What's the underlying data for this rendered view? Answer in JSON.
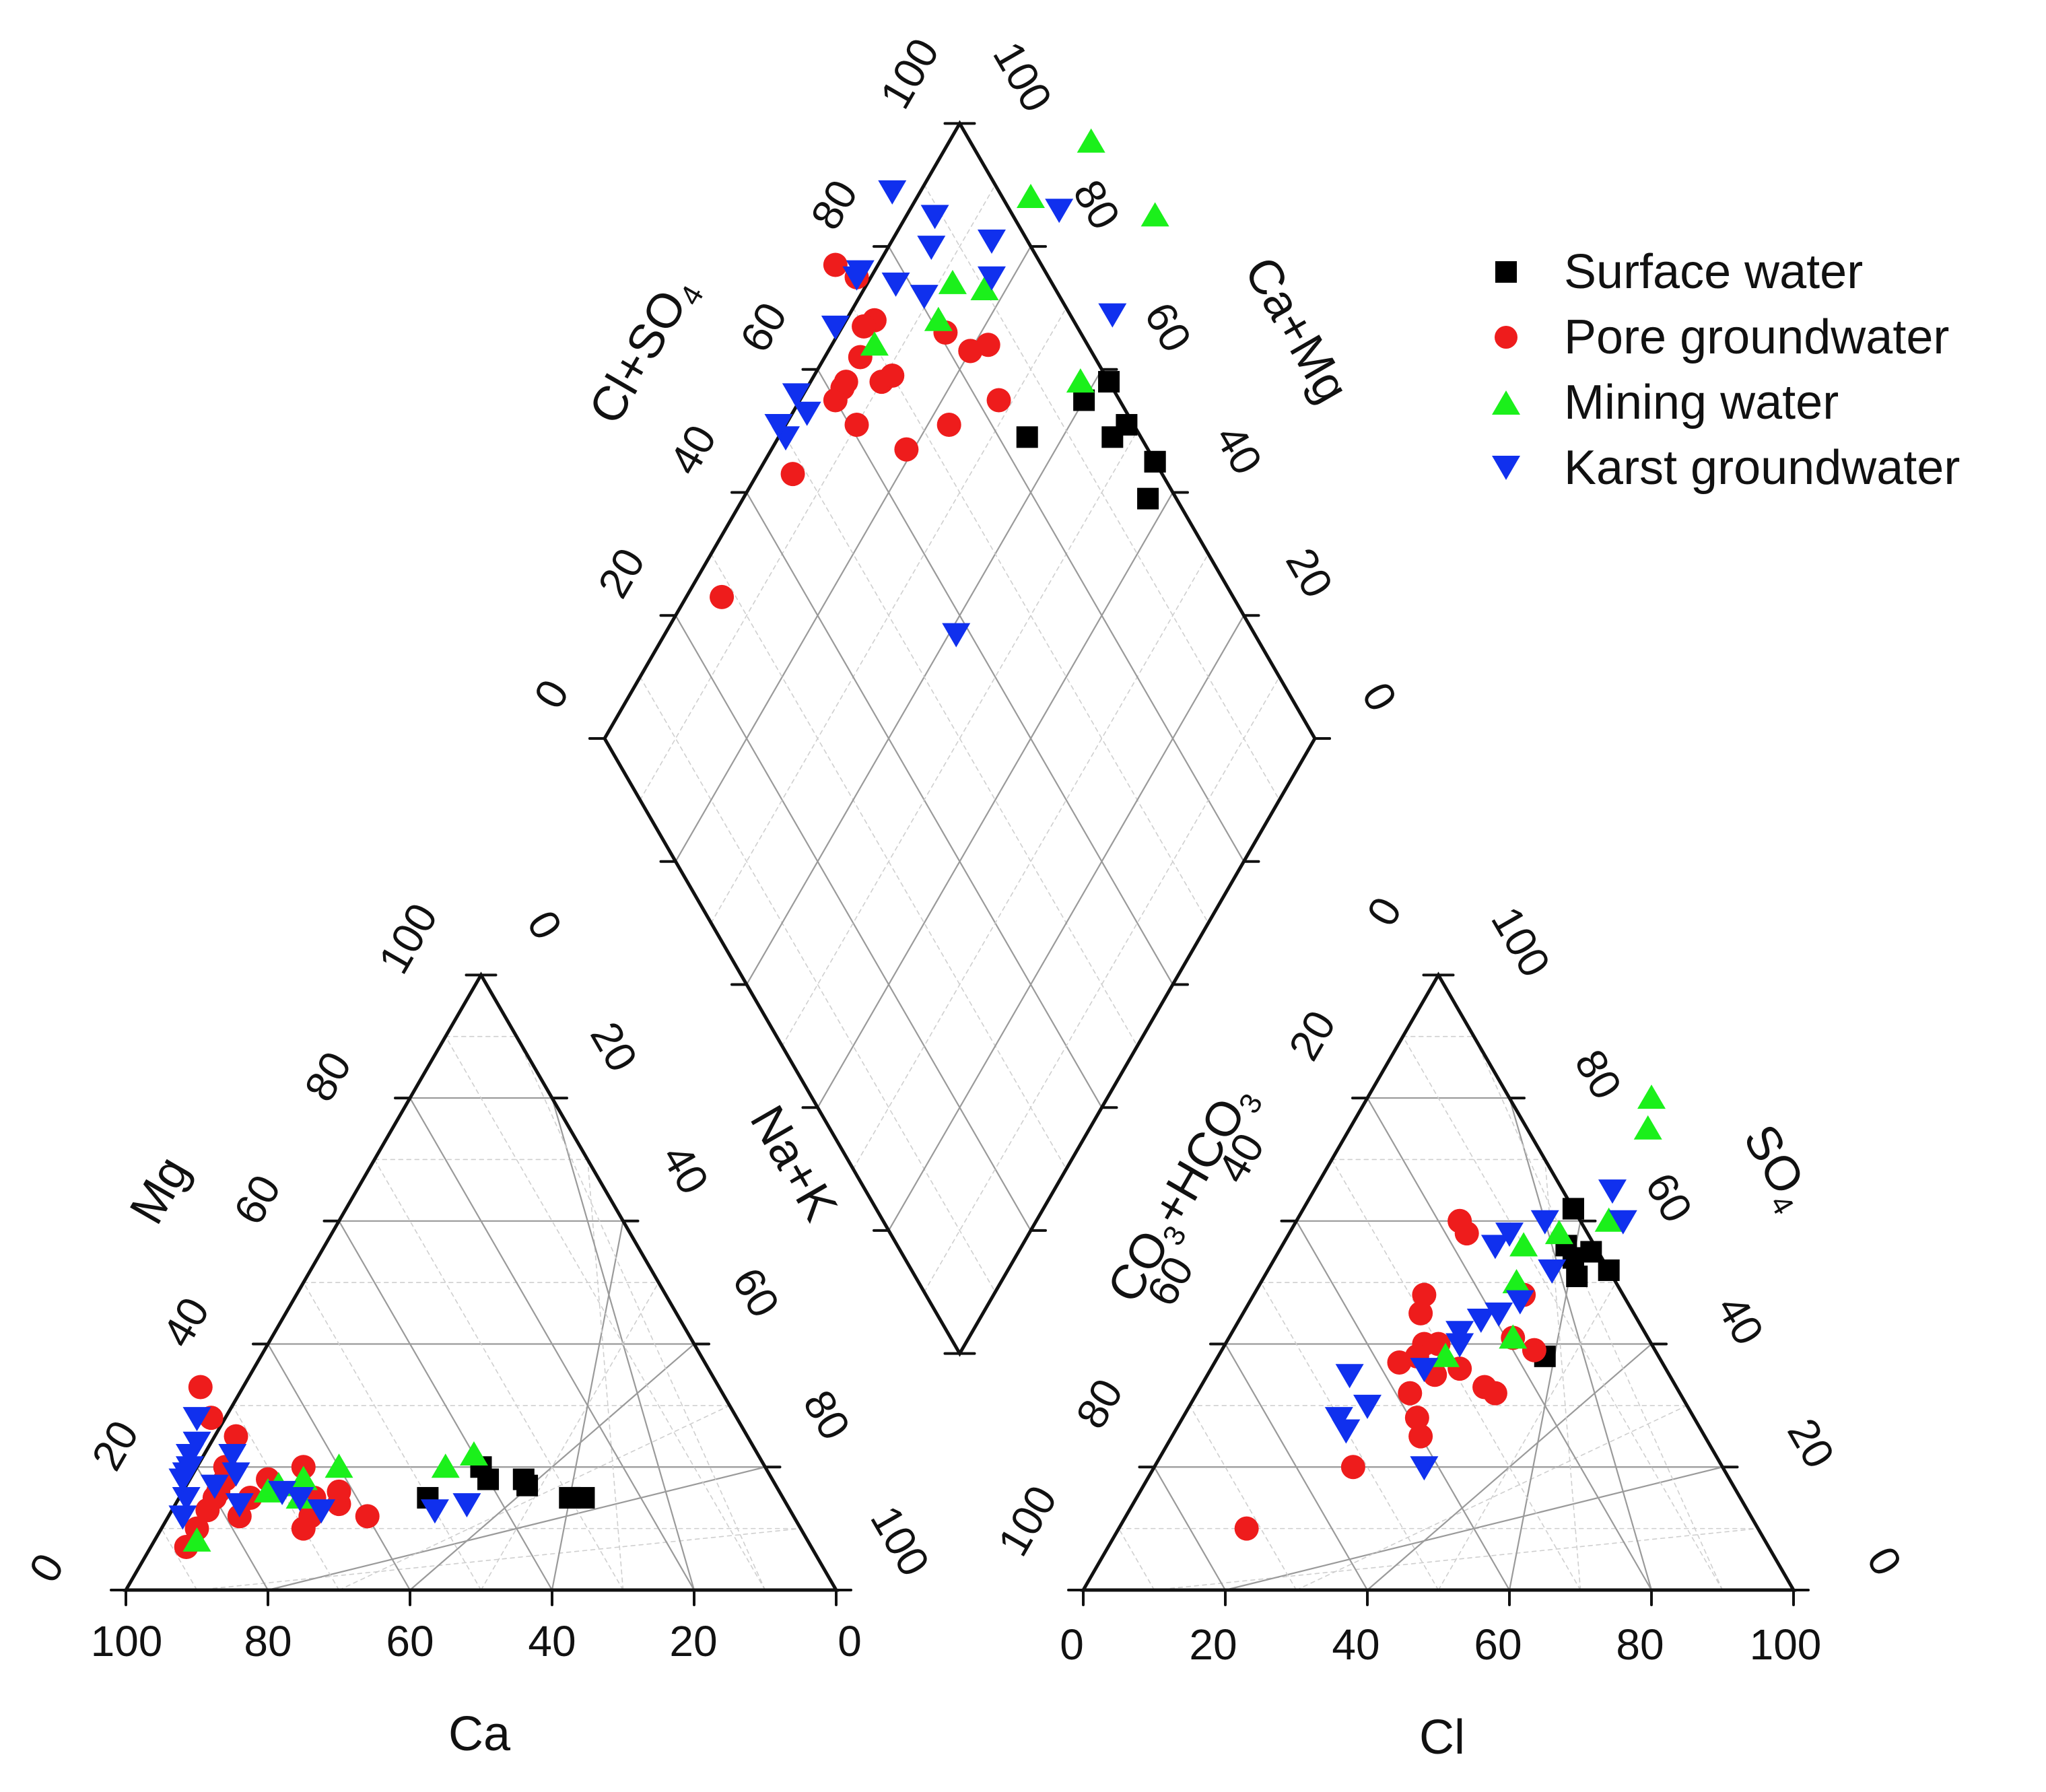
{
  "chart_data": {
    "type": "scatter",
    "subtype": "piper-trilinear",
    "colors": {
      "axis": "#111111",
      "grid_major": "#9a9a9a",
      "grid_minor": "#cfcfcf",
      "surface": "#000000",
      "pore": "#ee1c1c",
      "mining": "#1bf01b",
      "karst": "#1030ee"
    },
    "cation_ticks": {
      "ca": [
        "100",
        "80",
        "60",
        "40",
        "20",
        "0"
      ],
      "mg": [
        "0",
        "20",
        "40",
        "60",
        "80",
        "100"
      ],
      "nak": [
        "0",
        "20",
        "40",
        "60",
        "80",
        "100"
      ]
    },
    "anion_ticks": {
      "cl": [
        "0",
        "20",
        "40",
        "60",
        "80",
        "100"
      ],
      "so4": [
        "0",
        "20",
        "40",
        "60",
        "80",
        "100"
      ],
      "co3hco3": [
        "100",
        "80",
        "60",
        "40",
        "20",
        "0"
      ]
    },
    "diamond_ticks": {
      "clso4": [
        "0",
        "20",
        "40",
        "60",
        "80",
        "100"
      ],
      "camg": [
        "100",
        "80",
        "60",
        "40",
        "20",
        "0"
      ]
    },
    "axis_titles": {
      "ca": "Ca",
      "mg": "Mg",
      "nak": "Na+K",
      "cl": "Cl",
      "so4": "SO",
      "so4_sub": "4",
      "co3": "CO",
      "co3_sub": "3",
      "plus_hco": "+HCO",
      "hco3_sub": "3",
      "clso4": "Cl+SO",
      "clso4_sub": "4",
      "camg": "Ca+Mg"
    },
    "legend": {
      "surface": "Surface water",
      "pore": "Pore groundwater",
      "mining": "Mining water",
      "karst": "Karst groundwater"
    },
    "series": [
      {
        "key": "surface",
        "name": "Surface water",
        "marker": "square",
        "color": "#000000",
        "samples": [
          {
            "ca": 50,
            "mg": 15,
            "cl": 46,
            "so4": 38
          },
          {
            "ca": 40,
            "mg": 20,
            "cl": 44,
            "so4": 51
          },
          {
            "ca": 40,
            "mg": 18,
            "cl": 48,
            "so4": 52
          },
          {
            "ca": 35,
            "mg": 17,
            "cl": 44,
            "so4": 55
          },
          {
            "ca": 30,
            "mg": 15,
            "cl": 38,
            "so4": 62
          },
          {
            "ca": 30,
            "mg": 15,
            "cl": 38,
            "so4": 62
          },
          {
            "ca": 35,
            "mg": 18,
            "cl": 42,
            "so4": 54
          },
          {
            "ca": 28,
            "mg": 15,
            "cl": 40,
            "so4": 56
          }
        ]
      },
      {
        "key": "pore",
        "name": "Pore groundwater",
        "marker": "circle",
        "color": "#ee1c1c",
        "samples": [
          {
            "ca": 88,
            "mg": 7,
            "cl": 18,
            "so4": 10
          },
          {
            "ca": 85,
            "mg": 10,
            "cl": 35,
            "so4": 25
          },
          {
            "ca": 82,
            "mg": 13,
            "cl": 28,
            "so4": 20
          },
          {
            "ca": 80,
            "mg": 15,
            "cl": 32,
            "so4": 35
          },
          {
            "ca": 79,
            "mg": 16,
            "cl": 30,
            "so4": 32
          },
          {
            "ca": 78,
            "mg": 12,
            "cl": 28,
            "so4": 40
          },
          {
            "ca": 77,
            "mg": 18,
            "cl": 26,
            "so4": 37
          },
          {
            "ca": 76,
            "mg": 20,
            "cl": 24,
            "so4": 48
          },
          {
            "ca": 75,
            "mg": 15,
            "cl": 33,
            "so4": 28
          },
          {
            "ca": 74,
            "mg": 28,
            "cl": 40,
            "so4": 33
          },
          {
            "ca": 73,
            "mg": 33,
            "cl": 35,
            "so4": 36
          },
          {
            "ca": 72,
            "mg": 25,
            "cl": 30,
            "so4": 40
          },
          {
            "ca": 71,
            "mg": 18,
            "cl": 25,
            "so4": 45
          },
          {
            "ca": 70,
            "mg": 10,
            "cl": 23,
            "so4": 60
          },
          {
            "ca": 68,
            "mg": 12,
            "cl": 25,
            "so4": 58
          },
          {
            "ca": 66,
            "mg": 15,
            "cl": 28,
            "so4": 38
          },
          {
            "ca": 65,
            "mg": 20,
            "cl": 40,
            "so4": 41
          },
          {
            "ca": 63,
            "mg": 14,
            "cl": 42,
            "so4": 32
          },
          {
            "ca": 62,
            "mg": 16,
            "cl": 38,
            "so4": 48
          },
          {
            "ca": 60,
            "mg": 12,
            "cl": 44,
            "so4": 39
          }
        ]
      },
      {
        "key": "mining",
        "name": "Mining water",
        "marker": "triangle-up",
        "color": "#1bf01b",
        "samples": [
          {
            "ca": 86,
            "mg": 8,
            "cl": 32,
            "so4": 38
          },
          {
            "ca": 72,
            "mg": 16,
            "cl": 36,
            "so4": 50
          },
          {
            "ca": 68,
            "mg": 15,
            "cl": 34,
            "so4": 56
          },
          {
            "ca": 70,
            "mg": 17,
            "cl": 40,
            "so4": 41
          },
          {
            "ca": 66,
            "mg": 18,
            "cl": 44,
            "so4": 60
          },
          {
            "ca": 60,
            "mg": 20,
            "cl": 42,
            "so4": 75
          },
          {
            "ca": 45,
            "mg": 20,
            "cl": 40,
            "so4": 80
          },
          {
            "ca": 40,
            "mg": 22,
            "cl": 38,
            "so4": 58
          }
        ]
      },
      {
        "key": "karst",
        "name": "Karst groundwater",
        "marker": "triangle-down",
        "color": "#1030ee",
        "samples": [
          {
            "ca": 86,
            "mg": 12,
            "cl": 20,
            "so4": 35
          },
          {
            "ca": 84,
            "mg": 15,
            "cl": 22,
            "so4": 28
          },
          {
            "ca": 83,
            "mg": 18,
            "cl": 25,
            "so4": 30
          },
          {
            "ca": 82,
            "mg": 19,
            "cl": 24,
            "so4": 26
          },
          {
            "ca": 81,
            "mg": 20,
            "cl": 30,
            "so4": 36
          },
          {
            "ca": 80,
            "mg": 22,
            "cl": 32,
            "so4": 42
          },
          {
            "ca": 79,
            "mg": 17,
            "cl": 34,
            "so4": 44
          },
          {
            "ca": 78,
            "mg": 24,
            "cl": 33,
            "so4": 40
          },
          {
            "ca": 77,
            "mg": 14,
            "cl": 36,
            "so4": 45
          },
          {
            "ca": 76,
            "mg": 28,
            "cl": 38,
            "so4": 47
          },
          {
            "ca": 75,
            "mg": 19,
            "cl": 30,
            "so4": 56
          },
          {
            "ca": 74,
            "mg": 22,
            "cl": 31,
            "so4": 58
          },
          {
            "ca": 70,
            "mg": 16,
            "cl": 35,
            "so4": 60
          },
          {
            "ca": 68,
            "mg": 15,
            "cl": 40,
            "so4": 52
          },
          {
            "ca": 66,
            "mg": 13,
            "cl": 42,
            "so4": 65
          },
          {
            "ca": 50,
            "mg": 13,
            "cl": 46,
            "so4": 60
          },
          {
            "ca": 45,
            "mg": 14,
            "cl": 38,
            "so4": 20
          }
        ]
      }
    ]
  }
}
